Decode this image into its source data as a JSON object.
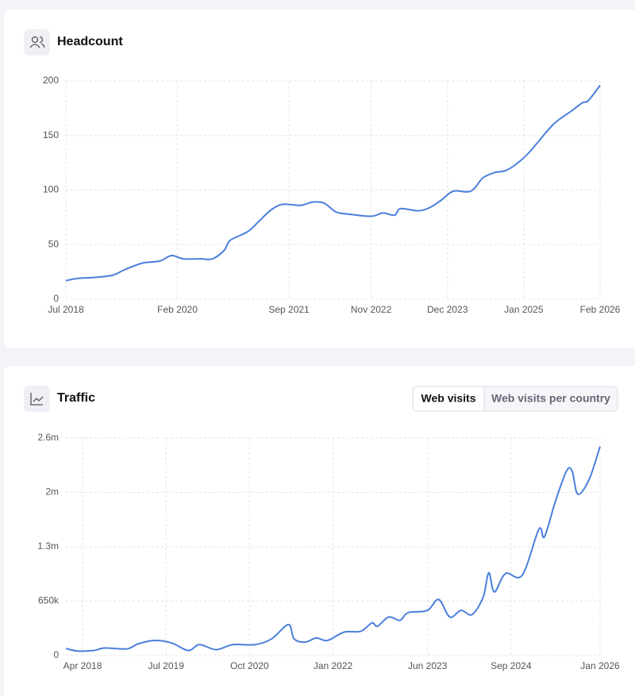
{
  "chart_data": [
    {
      "type": "line",
      "title": "Headcount",
      "color": "#4a7fdb",
      "grid": true,
      "x": [
        "Jul 2018",
        "Sep 2018",
        "Dec 2018",
        "Mar 2019",
        "May 2019",
        "Aug 2019",
        "Nov 2019",
        "Jan 2020",
        "Mar 2020",
        "Jun 2020",
        "Aug 2020",
        "Oct 2020",
        "Nov 2020",
        "Feb 2021",
        "Apr 2021",
        "Jun 2021",
        "Aug 2021",
        "Nov 2021",
        "Jan 2022",
        "Mar 2022",
        "May 2022",
        "Jul 2022",
        "Nov 2022",
        "Jan 2023",
        "Mar 2023",
        "Apr 2023",
        "Jul 2023",
        "Sep 2023",
        "Nov 2023",
        "Jan 2024",
        "Apr 2024",
        "Jun 2024",
        "Aug 2024",
        "Oct 2024",
        "Dec 2024",
        "Feb 2025",
        "Jun 2025",
        "Sep 2025",
        "Nov 2025",
        "Dec 2025",
        "Feb 2026"
      ],
      "values": [
        17,
        19,
        20,
        22,
        27,
        33,
        35,
        40,
        37,
        37,
        37,
        45,
        54,
        62,
        72,
        82,
        87,
        86,
        89,
        88,
        80,
        78,
        76,
        79,
        77,
        83,
        81,
        84,
        91,
        99,
        99,
        111,
        116,
        118,
        125,
        135,
        160,
        172,
        180,
        182,
        196
      ],
      "ylim": [
        0,
        200
      ],
      "yticks": [
        0,
        50,
        100,
        150,
        200
      ],
      "xticks": [
        "Jul 2018",
        "Feb 2020",
        "Sep 2021",
        "Nov 2022",
        "Dec 2023",
        "Jan 2025",
        "Feb 2026"
      ]
    },
    {
      "type": "line",
      "title": "Traffic",
      "color": "#4a7fdb",
      "grid": true,
      "x": [
        "Jan 2018",
        "Mar 2018",
        "Jun 2018",
        "Aug 2018",
        "Dec 2018",
        "Feb 2019",
        "May 2019",
        "Aug 2019",
        "Nov 2019",
        "Jan 2020",
        "Apr 2020",
        "Jul 2020",
        "Nov 2020",
        "Feb 2021",
        "May 2021",
        "Jun 2021",
        "Aug 2021",
        "Oct 2021",
        "Dec 2021",
        "Mar 2022",
        "Jun 2022",
        "Aug 2022",
        "Sep 2022",
        "Nov 2022",
        "Jan 2023",
        "Feb 2023",
        "Mar 2023",
        "Jun 2023",
        "Aug 2023",
        "Oct 2023",
        "Dec 2023",
        "Feb 2024",
        "Apr 2024",
        "May 2024",
        "Jun 2024",
        "Aug 2024",
        "Nov 2024",
        "Feb 2025",
        "Mar 2025",
        "May 2025",
        "Jul 2025",
        "Aug 2025",
        "Sep 2025",
        "Nov 2025",
        "Jan 2026"
      ],
      "values": [
        85000,
        55000,
        60000,
        90000,
        80000,
        140000,
        180000,
        150000,
        60000,
        130000,
        70000,
        130000,
        130000,
        200000,
        370000,
        200000,
        160000,
        210000,
        180000,
        280000,
        290000,
        390000,
        350000,
        460000,
        420000,
        490000,
        520000,
        540000,
        670000,
        460000,
        540000,
        490000,
        700000,
        990000,
        760000,
        980000,
        960000,
        1510000,
        1420000,
        1850000,
        2210000,
        2200000,
        1930000,
        2100000,
        2500000
      ],
      "ylim": [
        0,
        2600000
      ],
      "yticks": [
        0,
        {
          "value": 650000,
          "label": "650k"
        },
        {
          "value": 1300000,
          "label": "1.3m"
        },
        {
          "value": 1950000,
          "label": "2m"
        },
        {
          "value": 2600000,
          "label": "2.6m"
        }
      ],
      "xticks": [
        "Apr 2018",
        "Jul 2019",
        "Oct 2020",
        "Jan 2022",
        "Jun 2023",
        "Sep 2024",
        "Jan 2026"
      ]
    }
  ],
  "tabs": [
    "Web visits",
    "Web visits per country"
  ]
}
